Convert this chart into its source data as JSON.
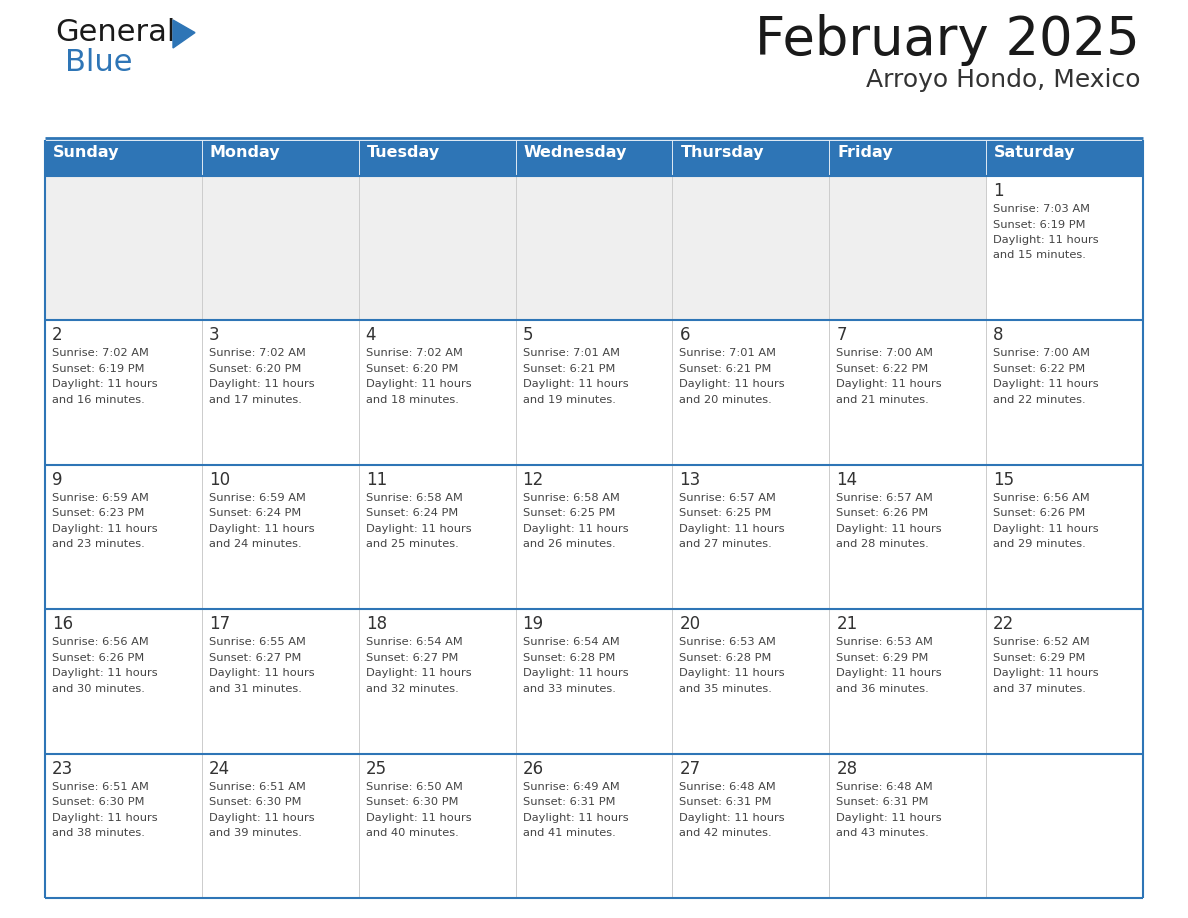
{
  "title": "February 2025",
  "subtitle": "Arroyo Hondo, Mexico",
  "header_color": "#2E75B6",
  "header_text_color": "#FFFFFF",
  "cell_bg_white": "#FFFFFF",
  "cell_bg_gray": "#EFEFEF",
  "border_color": "#2E75B6",
  "grid_line_color": "#CCCCCC",
  "day_names": [
    "Sunday",
    "Monday",
    "Tuesday",
    "Wednesday",
    "Thursday",
    "Friday",
    "Saturday"
  ],
  "title_color": "#1a1a1a",
  "subtitle_color": "#333333",
  "day_num_color": "#333333",
  "info_color": "#444444",
  "logo_general_color": "#1a1a1a",
  "logo_blue_color": "#2E75B6",
  "logo_triangle_color": "#2E75B6",
  "calendar_data": [
    [
      null,
      null,
      null,
      null,
      null,
      null,
      {
        "day": 1,
        "sunrise": "7:03 AM",
        "sunset": "6:19 PM",
        "daylight_hours": 11,
        "daylight_minutes": 15
      }
    ],
    [
      {
        "day": 2,
        "sunrise": "7:02 AM",
        "sunset": "6:19 PM",
        "daylight_hours": 11,
        "daylight_minutes": 16
      },
      {
        "day": 3,
        "sunrise": "7:02 AM",
        "sunset": "6:20 PM",
        "daylight_hours": 11,
        "daylight_minutes": 17
      },
      {
        "day": 4,
        "sunrise": "7:02 AM",
        "sunset": "6:20 PM",
        "daylight_hours": 11,
        "daylight_minutes": 18
      },
      {
        "day": 5,
        "sunrise": "7:01 AM",
        "sunset": "6:21 PM",
        "daylight_hours": 11,
        "daylight_minutes": 19
      },
      {
        "day": 6,
        "sunrise": "7:01 AM",
        "sunset": "6:21 PM",
        "daylight_hours": 11,
        "daylight_minutes": 20
      },
      {
        "day": 7,
        "sunrise": "7:00 AM",
        "sunset": "6:22 PM",
        "daylight_hours": 11,
        "daylight_minutes": 21
      },
      {
        "day": 8,
        "sunrise": "7:00 AM",
        "sunset": "6:22 PM",
        "daylight_hours": 11,
        "daylight_minutes": 22
      }
    ],
    [
      {
        "day": 9,
        "sunrise": "6:59 AM",
        "sunset": "6:23 PM",
        "daylight_hours": 11,
        "daylight_minutes": 23
      },
      {
        "day": 10,
        "sunrise": "6:59 AM",
        "sunset": "6:24 PM",
        "daylight_hours": 11,
        "daylight_minutes": 24
      },
      {
        "day": 11,
        "sunrise": "6:58 AM",
        "sunset": "6:24 PM",
        "daylight_hours": 11,
        "daylight_minutes": 25
      },
      {
        "day": 12,
        "sunrise": "6:58 AM",
        "sunset": "6:25 PM",
        "daylight_hours": 11,
        "daylight_minutes": 26
      },
      {
        "day": 13,
        "sunrise": "6:57 AM",
        "sunset": "6:25 PM",
        "daylight_hours": 11,
        "daylight_minutes": 27
      },
      {
        "day": 14,
        "sunrise": "6:57 AM",
        "sunset": "6:26 PM",
        "daylight_hours": 11,
        "daylight_minutes": 28
      },
      {
        "day": 15,
        "sunrise": "6:56 AM",
        "sunset": "6:26 PM",
        "daylight_hours": 11,
        "daylight_minutes": 29
      }
    ],
    [
      {
        "day": 16,
        "sunrise": "6:56 AM",
        "sunset": "6:26 PM",
        "daylight_hours": 11,
        "daylight_minutes": 30
      },
      {
        "day": 17,
        "sunrise": "6:55 AM",
        "sunset": "6:27 PM",
        "daylight_hours": 11,
        "daylight_minutes": 31
      },
      {
        "day": 18,
        "sunrise": "6:54 AM",
        "sunset": "6:27 PM",
        "daylight_hours": 11,
        "daylight_minutes": 32
      },
      {
        "day": 19,
        "sunrise": "6:54 AM",
        "sunset": "6:28 PM",
        "daylight_hours": 11,
        "daylight_minutes": 33
      },
      {
        "day": 20,
        "sunrise": "6:53 AM",
        "sunset": "6:28 PM",
        "daylight_hours": 11,
        "daylight_minutes": 35
      },
      {
        "day": 21,
        "sunrise": "6:53 AM",
        "sunset": "6:29 PM",
        "daylight_hours": 11,
        "daylight_minutes": 36
      },
      {
        "day": 22,
        "sunrise": "6:52 AM",
        "sunset": "6:29 PM",
        "daylight_hours": 11,
        "daylight_minutes": 37
      }
    ],
    [
      {
        "day": 23,
        "sunrise": "6:51 AM",
        "sunset": "6:30 PM",
        "daylight_hours": 11,
        "daylight_minutes": 38
      },
      {
        "day": 24,
        "sunrise": "6:51 AM",
        "sunset": "6:30 PM",
        "daylight_hours": 11,
        "daylight_minutes": 39
      },
      {
        "day": 25,
        "sunrise": "6:50 AM",
        "sunset": "6:30 PM",
        "daylight_hours": 11,
        "daylight_minutes": 40
      },
      {
        "day": 26,
        "sunrise": "6:49 AM",
        "sunset": "6:31 PM",
        "daylight_hours": 11,
        "daylight_minutes": 41
      },
      {
        "day": 27,
        "sunrise": "6:48 AM",
        "sunset": "6:31 PM",
        "daylight_hours": 11,
        "daylight_minutes": 42
      },
      {
        "day": 28,
        "sunrise": "6:48 AM",
        "sunset": "6:31 PM",
        "daylight_hours": 11,
        "daylight_minutes": 43
      },
      null
    ]
  ],
  "figsize": [
    11.88,
    9.18
  ],
  "dpi": 100
}
